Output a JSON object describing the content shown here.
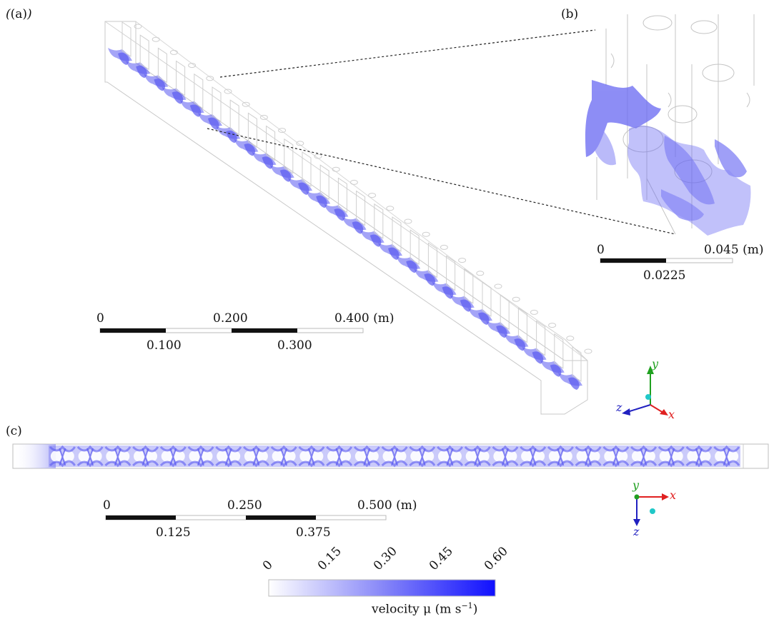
{
  "panels": {
    "a": "(a)",
    "b": "(b)",
    "c": "(c)"
  },
  "scalebar_a": {
    "top": [
      "0",
      "0.200",
      "0.400 (m)"
    ],
    "bottom": [
      "0.100",
      "0.300"
    ]
  },
  "scalebar_b": {
    "top": [
      "0",
      "0.045 (m)"
    ],
    "bottom": [
      "0.0225"
    ]
  },
  "scalebar_c": {
    "top": [
      "0",
      "0.250",
      "0.500 (m)"
    ],
    "bottom": [
      "0.125",
      "0.375"
    ]
  },
  "axes_a": {
    "x": "x",
    "y": "y",
    "z": "z"
  },
  "axes_c": {
    "x": "x",
    "y": "y",
    "z": "z"
  },
  "colorbar": {
    "ticks": [
      "0",
      "0.15",
      "0.30",
      "0.45",
      "0.60"
    ],
    "label": "velocity μ (m s",
    "label_sup": "−1",
    "label_end": ")",
    "color_min": "#ffffff",
    "color_max": "#1010ff"
  },
  "colors": {
    "flow": "#5a5af0",
    "axis_x": "#e02020",
    "axis_y": "#20a020",
    "axis_z": "#2020c0",
    "axis_dot": "#20c8c8"
  }
}
